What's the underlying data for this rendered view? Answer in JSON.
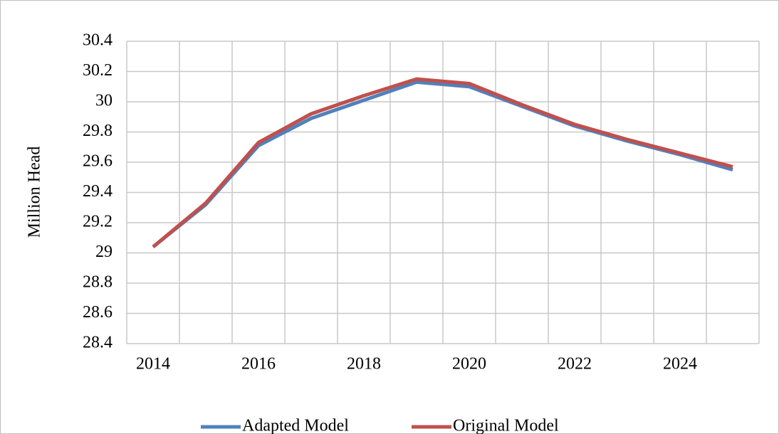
{
  "chart_data": {
    "type": "line",
    "y_label": "Million Head",
    "categories": [
      "2014",
      null,
      "2016",
      null,
      "2018",
      null,
      "2020",
      null,
      "2022",
      null,
      "2024",
      null
    ],
    "series": [
      {
        "name": "Adapted Model",
        "color": "#4f81bd",
        "values": [
          29.04,
          29.32,
          29.71,
          29.89,
          30.01,
          30.13,
          30.1,
          29.97,
          29.84,
          29.74,
          29.65,
          29.55
        ]
      },
      {
        "name": "Original Model",
        "color": "#c0504d",
        "values": [
          29.04,
          29.33,
          29.73,
          29.92,
          30.04,
          30.15,
          30.12,
          29.98,
          29.85,
          29.75,
          29.66,
          29.57
        ]
      }
    ],
    "ylim": [
      28.4,
      30.4
    ],
    "yticks": [
      28.4,
      28.6,
      28.8,
      29,
      29.2,
      29.4,
      29.6,
      29.8,
      30,
      30.2,
      30.4
    ],
    "grid": true,
    "legend": "bottom"
  }
}
